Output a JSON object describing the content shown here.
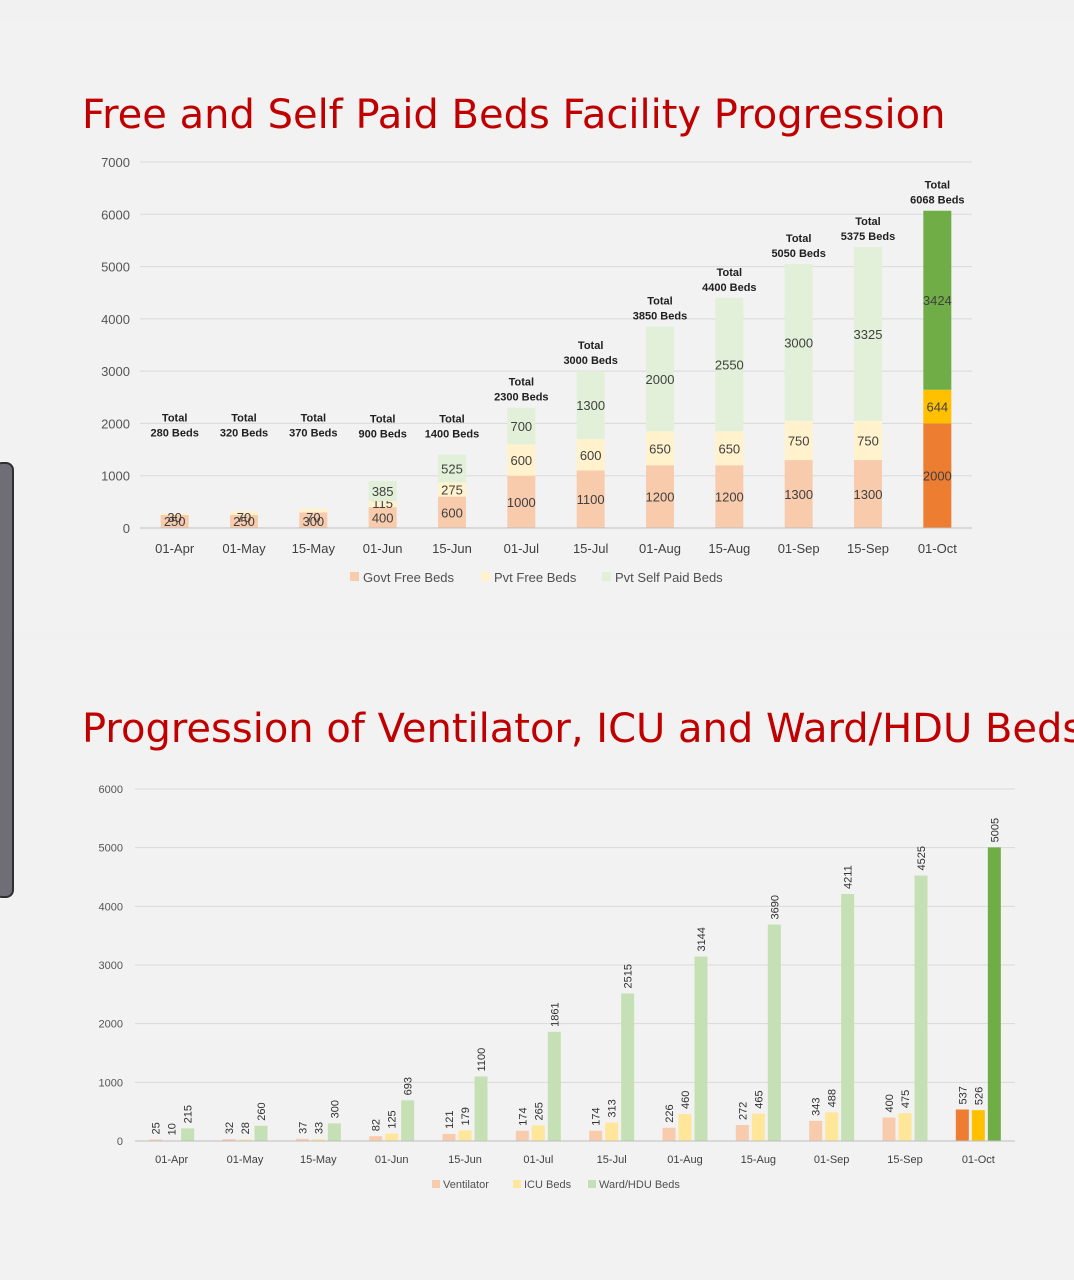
{
  "chart_data": [
    {
      "type": "bar",
      "stacked": true,
      "title": "Free and Self Paid Beds Facility Progression",
      "ylim": [
        0,
        7000
      ],
      "yticks": [
        0,
        1000,
        2000,
        3000,
        4000,
        5000,
        6000,
        7000
      ],
      "grid": true,
      "legend_position": "bottom",
      "categories": [
        "01-Apr",
        "01-May",
        "15-May",
        "01-Jun",
        "15-Jun",
        "01-Jul",
        "15-Jul",
        "01-Aug",
        "15-Aug",
        "01-Sep",
        "15-Sep",
        "01-Oct"
      ],
      "series": [
        {
          "name": "Govt Free Beds",
          "color": "#f8cbad",
          "highlight_color": "#ed7d31",
          "values": [
            250,
            250,
            300,
            400,
            600,
            1000,
            1100,
            1200,
            1200,
            1300,
            1300,
            2000
          ]
        },
        {
          "name": "Pvt Free Beds",
          "color": "#fff2cc",
          "highlight_color": "#ffc000",
          "values": [
            30,
            70,
            70,
            115,
            275,
            600,
            600,
            650,
            650,
            750,
            750,
            644
          ]
        },
        {
          "name": "Pvt Self Paid Beds",
          "color": "#e2f0d9",
          "highlight_color": "#70ad47",
          "values": [
            0,
            0,
            0,
            385,
            525,
            700,
            1300,
            2000,
            2550,
            3000,
            3325,
            3424
          ]
        }
      ],
      "value_labels": [
        [
          "250",
          "250",
          "300",
          "400",
          "600",
          "1000",
          "1100",
          "1200",
          "1200",
          "1300",
          "1300",
          "2000"
        ],
        [
          "30",
          "70",
          "70",
          "115",
          "275",
          "600",
          "600",
          "650",
          "650",
          "750",
          "750",
          "644"
        ],
        [
          "",
          "",
          "",
          "385",
          "525",
          "700",
          "1300",
          "2000",
          "2550",
          "3000",
          "3325",
          "3424"
        ]
      ],
      "totals": [
        [
          "Total",
          "280 Beds"
        ],
        [
          "Total",
          "320 Beds"
        ],
        [
          "Total",
          "370 Beds"
        ],
        [
          "Total",
          "900 Beds"
        ],
        [
          "Total",
          "1400 Beds"
        ],
        [
          "Total",
          "2300 Beds"
        ],
        [
          "Total",
          "3000 Beds"
        ],
        [
          "Total",
          "3850 Beds"
        ],
        [
          "Total",
          "4400 Beds"
        ],
        [
          "Total",
          "5050 Beds"
        ],
        [
          "Total",
          "5375 Beds"
        ],
        [
          "Total",
          "6068 Beds"
        ]
      ]
    },
    {
      "type": "bar",
      "title": "Progression of Ventilator, ICU and Ward/HDU Beds",
      "ylim": [
        0,
        6000
      ],
      "yticks": [
        0,
        1000,
        2000,
        3000,
        4000,
        5000,
        6000
      ],
      "grid": true,
      "legend_position": "bottom",
      "categories": [
        "01-Apr",
        "01-May",
        "15-May",
        "01-Jun",
        "15-Jun",
        "01-Jul",
        "15-Jul",
        "01-Aug",
        "15-Aug",
        "01-Sep",
        "15-Sep",
        "01-Oct"
      ],
      "series": [
        {
          "name": "Ventilator",
          "color": "#f8cbad",
          "highlight_color": "#ed7d31",
          "values": [
            25,
            32,
            37,
            82,
            121,
            174,
            174,
            226,
            272,
            343,
            400,
            537
          ]
        },
        {
          "name": "ICU Beds",
          "color": "#ffe699",
          "highlight_color": "#ffc000",
          "values": [
            10,
            28,
            33,
            125,
            179,
            265,
            313,
            460,
            465,
            488,
            475,
            526
          ]
        },
        {
          "name": "Ward/HDU Beds",
          "color": "#c5e0b4",
          "highlight_color": "#70ad47",
          "values": [
            215,
            260,
            300,
            693,
            1100,
            1861,
            2515,
            3144,
            3690,
            4211,
            4525,
            5005
          ]
        }
      ]
    }
  ]
}
